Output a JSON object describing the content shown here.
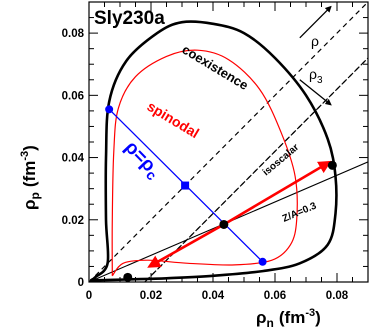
{
  "chart_data": {
    "type": "scatter",
    "title": "Sly230a",
    "xlabel": "ρn (fm⁻³)",
    "ylabel": "ρp (fm⁻³)",
    "xlabel_parts": {
      "base": "ρ",
      "sub": "n",
      "unit_pre": "(fm",
      "unit_exp": "-3",
      "unit_post": ")"
    },
    "ylabel_parts": {
      "base": "ρ",
      "sub": "p",
      "unit_pre": "(fm",
      "unit_exp": "-3",
      "unit_post": ")"
    },
    "xlim": [
      0,
      0.09
    ],
    "ylim": [
      0,
      0.09
    ],
    "x_ticks": [
      0,
      0.02,
      0.04,
      0.06,
      0.08
    ],
    "y_ticks": [
      0,
      0.02,
      0.04,
      0.06,
      0.08
    ],
    "x_tick_labels": [
      "0",
      "0.02",
      "0.04",
      "0.06",
      "0.08"
    ],
    "y_tick_labels": [
      "0",
      "0.02",
      "0.04",
      "0.06",
      "0.08"
    ],
    "annotations": {
      "coexistence": "coexistence",
      "spinodal": "spinodal",
      "rho_eq_lhs": "ρ=ρ",
      "rho_eq_sub": "c",
      "isoscalar": "isoscalar",
      "za": "Z/A=0.3",
      "axis_rho": "ρ",
      "axis_rho3_base": "ρ",
      "axis_rho3_sub": "3"
    },
    "colors": {
      "coexistence": "#000000",
      "spinodal": "#ff0000",
      "rho_c": "#0000ff",
      "arrow": "#ff0000",
      "dashed": "#000000"
    },
    "coexistence_curve": [
      [
        0.0005,
        0.0005
      ],
      [
        0.002,
        0.0015
      ],
      [
        0.006,
        0.006
      ],
      [
        0.0055,
        0.02
      ],
      [
        0.0055,
        0.04
      ],
      [
        0.0065,
        0.058
      ],
      [
        0.012,
        0.071
      ],
      [
        0.022,
        0.08
      ],
      [
        0.03,
        0.0835
      ],
      [
        0.04,
        0.083
      ],
      [
        0.05,
        0.08
      ],
      [
        0.06,
        0.072
      ],
      [
        0.07,
        0.06
      ],
      [
        0.077,
        0.046
      ],
      [
        0.0795,
        0.034
      ],
      [
        0.0795,
        0.022
      ],
      [
        0.077,
        0.012
      ],
      [
        0.068,
        0.006
      ],
      [
        0.056,
        0.0035
      ],
      [
        0.04,
        0.002
      ],
      [
        0.025,
        0.0012
      ],
      [
        0.012,
        0.0008
      ],
      [
        0.0005,
        0.0005
      ]
    ],
    "spinodal_curve": [
      [
        0.0075,
        0.002
      ],
      [
        0.0075,
        0.02
      ],
      [
        0.008,
        0.042
      ],
      [
        0.0095,
        0.056
      ],
      [
        0.015,
        0.066
      ],
      [
        0.025,
        0.0725
      ],
      [
        0.035,
        0.0745
      ],
      [
        0.045,
        0.0715
      ],
      [
        0.055,
        0.062
      ],
      [
        0.062,
        0.048
      ],
      [
        0.0665,
        0.034
      ],
      [
        0.067,
        0.02
      ],
      [
        0.065,
        0.012
      ],
      [
        0.059,
        0.007
      ],
      [
        0.047,
        0.0055
      ],
      [
        0.032,
        0.006
      ],
      [
        0.019,
        0.007
      ],
      [
        0.011,
        0.006
      ],
      [
        0.0075,
        0.002
      ]
    ],
    "blue_line": [
      [
        0.0065,
        0.0555
      ],
      [
        0.056,
        0.0065
      ]
    ],
    "blue_points": [
      [
        0.0065,
        0.0555
      ],
      [
        0.056,
        0.0065
      ]
    ],
    "blue_square": [
      0.031,
      0.031
    ],
    "black_points": [
      [
        0.0435,
        0.0185
      ],
      [
        0.0785,
        0.0375
      ],
      [
        0.0125,
        0.0015
      ]
    ],
    "dashed_lines": [
      [
        [
          0.0,
          0.0
        ],
        [
          0.09,
          0.09
        ]
      ],
      [
        [
          0.0,
          -0.018
        ],
        [
          0.09,
          0.072
        ]
      ],
      [
        [
          0.018,
          0.0
        ],
        [
          0.09,
          0.072
        ]
      ]
    ],
    "za_line": [
      [
        0.0,
        0.0
      ],
      [
        0.09,
        0.0386
      ]
    ],
    "red_arrows": [
      {
        "from": [
          0.0435,
          0.0185
        ],
        "to": [
          0.0775,
          0.0385
        ]
      },
      {
        "from": [
          0.0435,
          0.0185
        ],
        "to": [
          0.0195,
          0.005
        ]
      }
    ],
    "axis_arrows": [
      {
        "from": [
          0.068,
          0.0785
        ],
        "to": [
          0.078,
          0.0885
        ]
      },
      {
        "from": [
          0.068,
          0.065
        ],
        "to": [
          0.078,
          0.057
        ]
      }
    ]
  }
}
